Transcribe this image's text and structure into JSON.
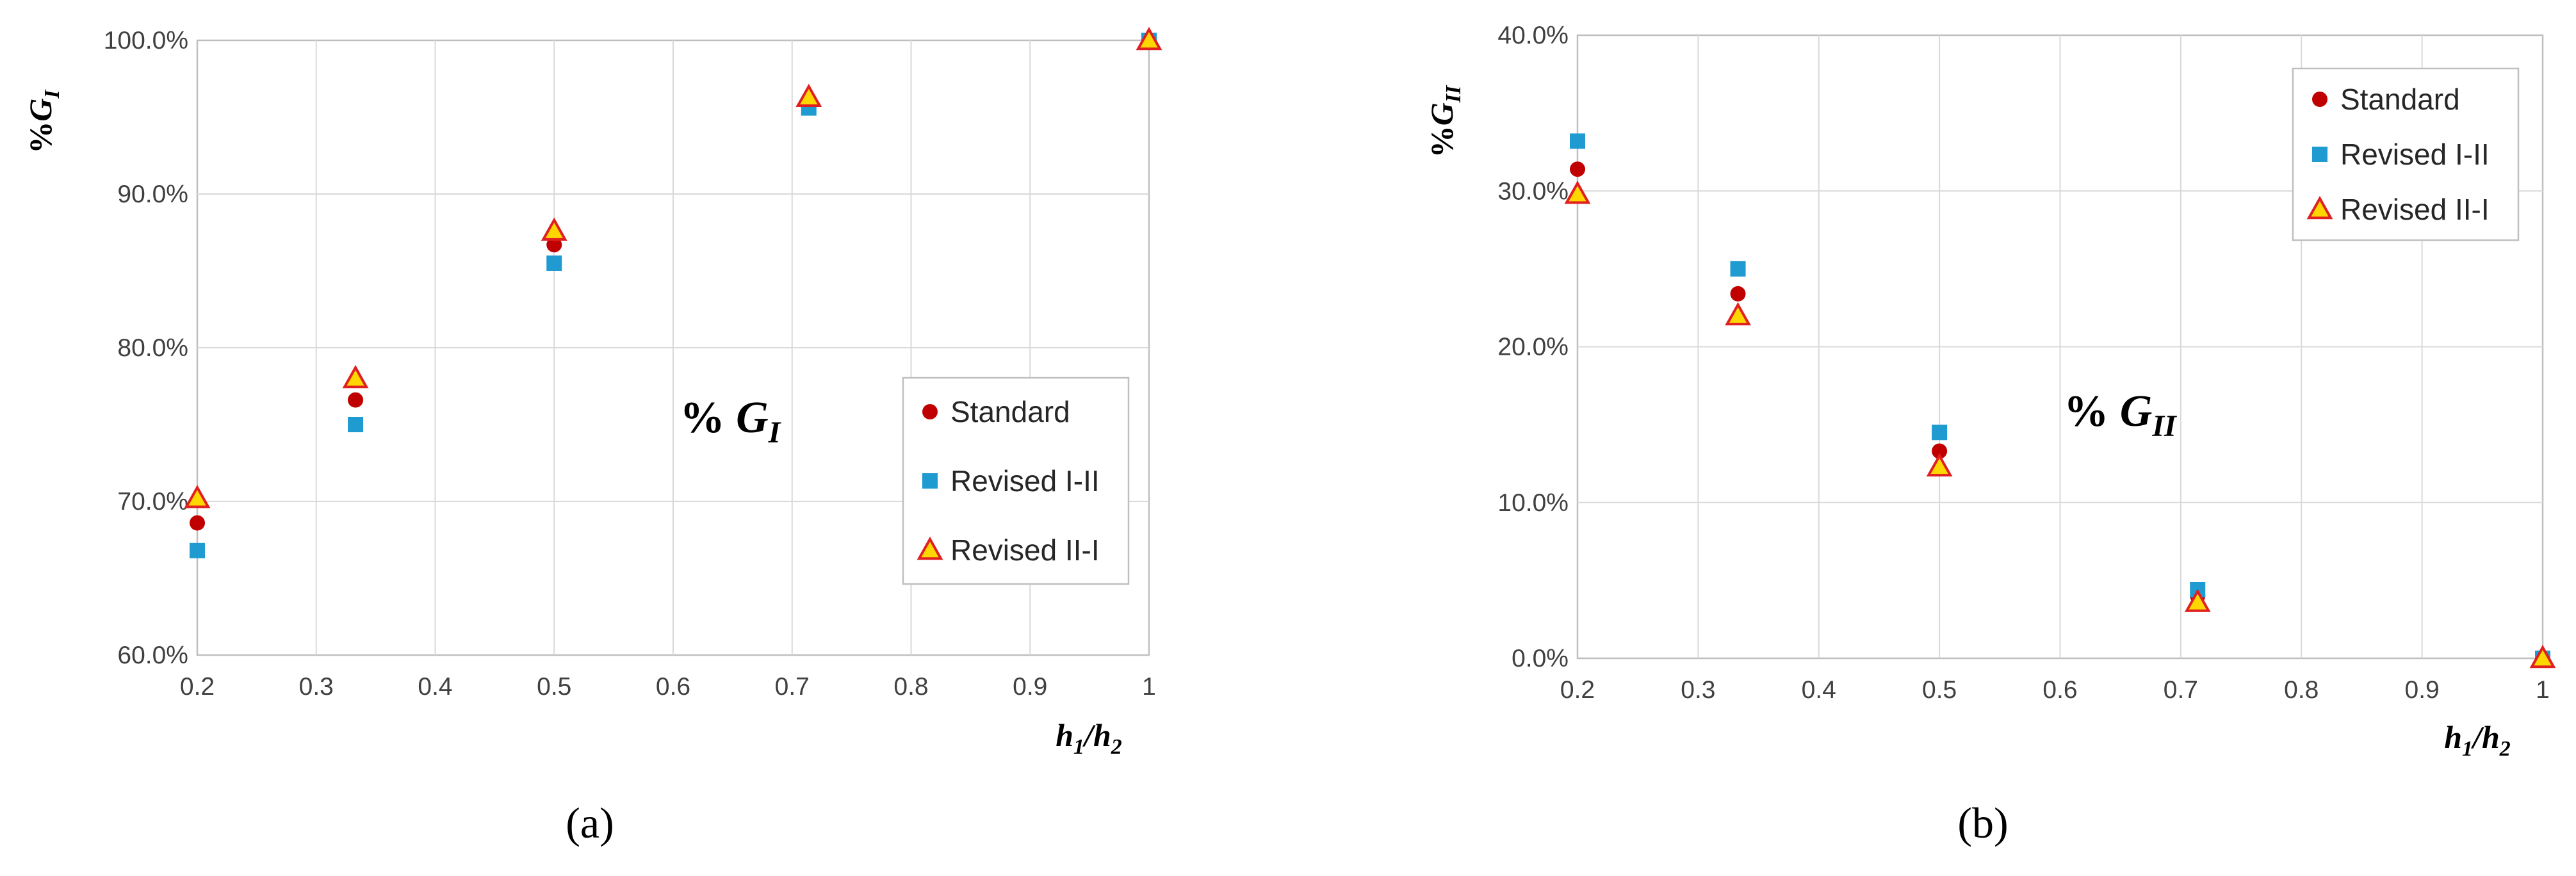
{
  "figure": {
    "panel_labels": [
      "(a)",
      "(b)"
    ]
  },
  "chart_data": [
    {
      "type": "scatter",
      "panel": "(a)",
      "title": "",
      "ylabel": {
        "prefix": "%",
        "main": "G",
        "sub": "I"
      },
      "xlabel": {
        "n1": "h",
        "s1": "1",
        "sep": "/",
        "n2": "h",
        "s2": "2"
      },
      "annotation": {
        "prefix": "% ",
        "main": "G",
        "sub": "I"
      },
      "xlim": [
        0.2,
        1.0
      ],
      "ylim": [
        60,
        100
      ],
      "x_ticks": [
        0.2,
        0.3,
        0.4,
        0.5,
        0.6,
        0.7,
        0.8,
        0.9,
        1.0
      ],
      "x_tick_labels": [
        "0.2",
        "0.3",
        "0.4",
        "0.5",
        "0.6",
        "0.7",
        "0.8",
        "0.9",
        "1"
      ],
      "y_ticks": [
        60,
        70,
        80,
        90,
        100
      ],
      "y_tick_labels": [
        "60.0%",
        "70.0%",
        "80.0%",
        "90.0%",
        "100.0%"
      ],
      "grid": true,
      "legend_position": "right-middle",
      "x": [
        0.2,
        0.333,
        0.5,
        0.714,
        1.0
      ],
      "series": [
        {
          "name": "Standard",
          "marker": "circle",
          "color": "#C00000",
          "values": [
            68.6,
            76.6,
            86.7,
            96.0,
            100.0
          ]
        },
        {
          "name": "Revised I-II",
          "marker": "square",
          "color": "#1F9BD1",
          "values": [
            66.8,
            75.0,
            85.5,
            95.6,
            100.0
          ]
        },
        {
          "name": "Revised II-I",
          "marker": "triangle",
          "color": "#FFD700",
          "edge": "#E02020",
          "values": [
            70.2,
            78.0,
            87.6,
            96.3,
            100.0
          ]
        }
      ]
    },
    {
      "type": "scatter",
      "panel": "(b)",
      "title": "",
      "ylabel": {
        "prefix": "%",
        "main": "G",
        "sub": "II"
      },
      "xlabel": {
        "n1": "h",
        "s1": "1",
        "sep": "/",
        "n2": "h",
        "s2": "2"
      },
      "annotation": {
        "prefix": "% ",
        "main": "G",
        "sub": "II"
      },
      "xlim": [
        0.2,
        1.0
      ],
      "ylim": [
        0,
        40
      ],
      "x_ticks": [
        0.2,
        0.3,
        0.4,
        0.5,
        0.6,
        0.7,
        0.8,
        0.9,
        1.0
      ],
      "x_tick_labels": [
        "0.2",
        "0.3",
        "0.4",
        "0.5",
        "0.6",
        "0.7",
        "0.8",
        "0.9",
        "1"
      ],
      "y_ticks": [
        0,
        10,
        20,
        30,
        40
      ],
      "y_tick_labels": [
        "0.0%",
        "10.0%",
        "20.0%",
        "30.0%",
        "40.0%"
      ],
      "grid": true,
      "legend_position": "top-right",
      "x": [
        0.2,
        0.333,
        0.5,
        0.714,
        1.0
      ],
      "series": [
        {
          "name": "Standard",
          "marker": "circle",
          "color": "#C00000",
          "values": [
            31.4,
            23.4,
            13.3,
            4.0,
            0.0
          ]
        },
        {
          "name": "Revised I-II",
          "marker": "square",
          "color": "#1F9BD1",
          "values": [
            33.2,
            25.0,
            14.5,
            4.4,
            0.0
          ]
        },
        {
          "name": "Revised II-I",
          "marker": "triangle",
          "color": "#FFD700",
          "edge": "#E02020",
          "values": [
            29.8,
            22.0,
            12.3,
            3.6,
            0.0
          ]
        }
      ]
    }
  ]
}
